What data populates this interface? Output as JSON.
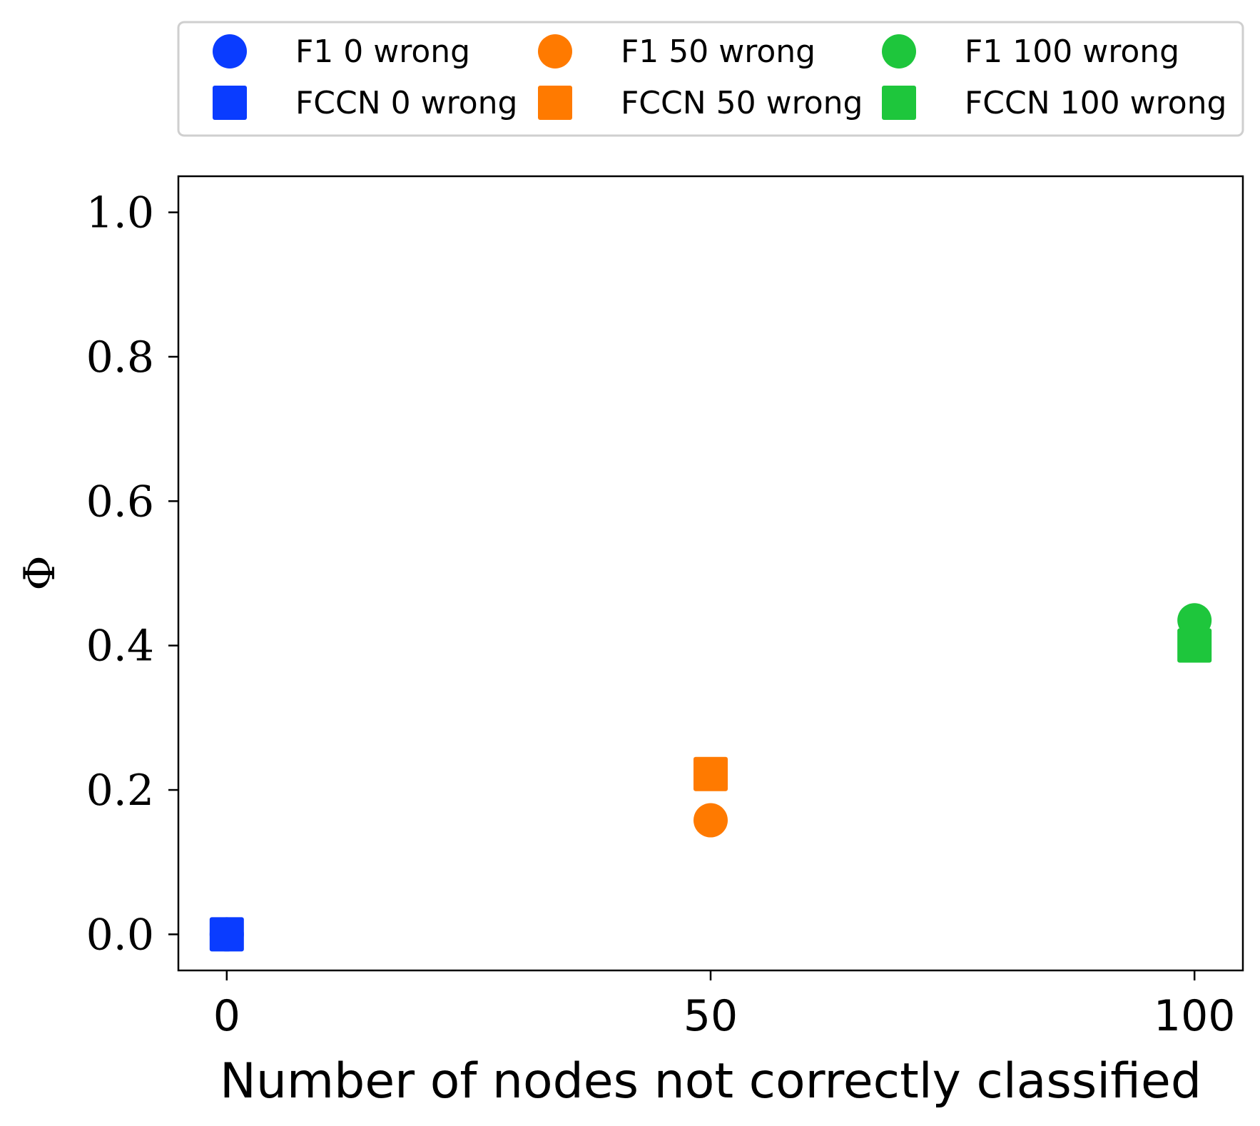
{
  "chart_data": {
    "type": "scatter",
    "title": "",
    "xlabel": "Number of nodes not correctly classified",
    "ylabel": "Φ",
    "xlim": [
      -5,
      105
    ],
    "ylim": [
      -0.05,
      1.05
    ],
    "x_ticks": [
      0,
      50,
      100
    ],
    "x_tick_labels": [
      "0",
      "50",
      "100"
    ],
    "y_ticks": [
      0.0,
      0.2,
      0.4,
      0.6,
      0.8,
      1.0
    ],
    "y_tick_labels": [
      "0.0",
      "0.2",
      "0.4",
      "0.6",
      "0.8",
      "1.0"
    ],
    "grid": false,
    "legend_position": "top",
    "legend_columns": 3,
    "series": [
      {
        "name": "F1 0 wrong",
        "marker": "circle",
        "color": "#0a3cff",
        "x": [
          0
        ],
        "y": [
          0.0
        ]
      },
      {
        "name": "FCCN 0 wrong",
        "marker": "square",
        "color": "#0a3cff",
        "x": [
          0
        ],
        "y": [
          0.0
        ]
      },
      {
        "name": "F1 50 wrong",
        "marker": "circle",
        "color": "#ff7a00",
        "x": [
          50
        ],
        "y": [
          0.158
        ]
      },
      {
        "name": "FCCN 50 wrong",
        "marker": "square",
        "color": "#ff7a00",
        "x": [
          50
        ],
        "y": [
          0.222
        ]
      },
      {
        "name": "F1 100 wrong",
        "marker": "circle",
        "color": "#1ec63c",
        "x": [
          100
        ],
        "y": [
          0.435
        ]
      },
      {
        "name": "FCCN 100 wrong",
        "marker": "square",
        "color": "#1ec63c",
        "x": [
          100
        ],
        "y": [
          0.4
        ]
      }
    ]
  }
}
